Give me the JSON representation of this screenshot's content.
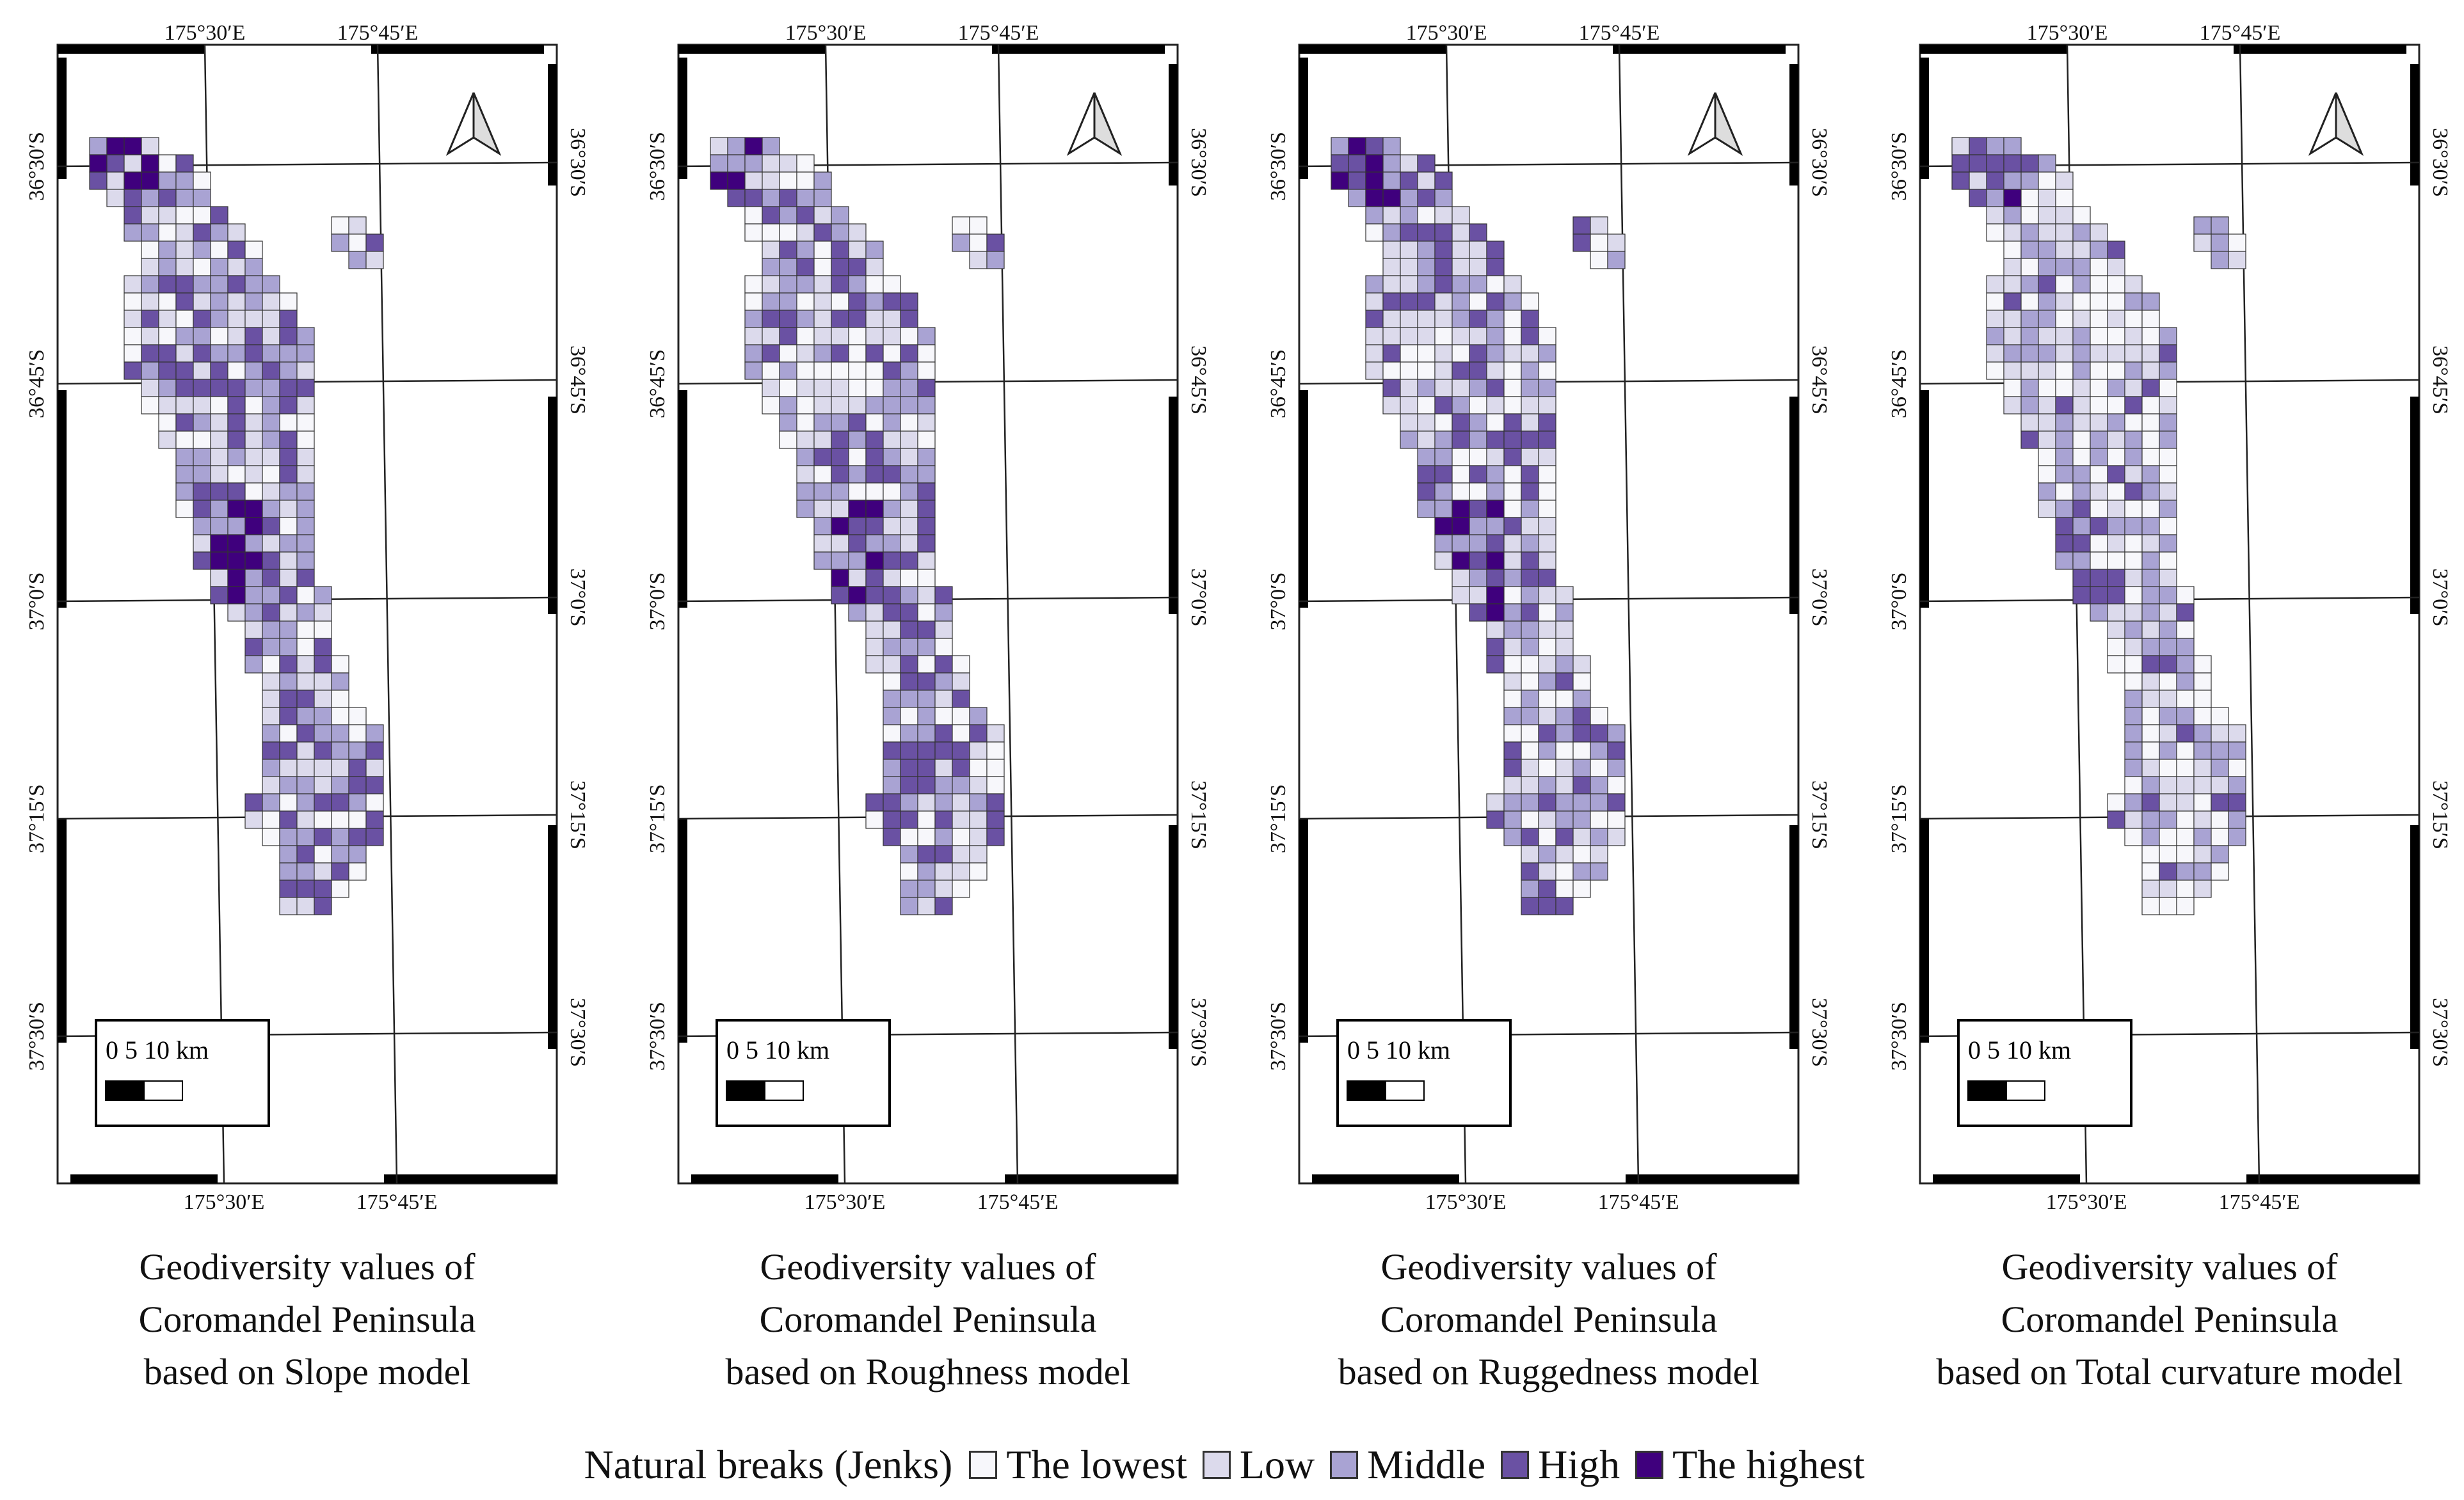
{
  "axis_labels": {
    "lon": [
      "175°30′E",
      "175°45′E"
    ],
    "lat": [
      "36°30′S",
      "36°45′S",
      "37°0′S",
      "37°15′S",
      "37°30′S"
    ]
  },
  "scale_bar": {
    "label": "0   5   10 km"
  },
  "maps": [
    {
      "caption": [
        "Geodiversity values of",
        "Coromandel Peninsula",
        "based on Slope model"
      ],
      "model": "Slope"
    },
    {
      "caption": [
        "Geodiversity values of",
        "Coromandel Peninsula",
        "based on Roughness model"
      ],
      "model": "Roughness"
    },
    {
      "caption": [
        "Geodiversity values of",
        "Coromandel Peninsula",
        "based on Ruggedness model"
      ],
      "model": "Ruggedness"
    },
    {
      "caption": [
        "Geodiversity values of",
        "Coromandel Peninsula",
        "based on Total curvature model"
      ],
      "model": "Total curvature"
    }
  ],
  "legend": {
    "title": "Natural breaks (Jenks)",
    "classes": [
      {
        "label": "The lowest",
        "color": "#f7f7fb"
      },
      {
        "label": "Low",
        "color": "#dcdaec"
      },
      {
        "label": "Middle",
        "color": "#a9a3d3"
      },
      {
        "label": "High",
        "color": "#6a51a3"
      },
      {
        "label": "The highest",
        "color": "#3f007d"
      }
    ]
  }
}
